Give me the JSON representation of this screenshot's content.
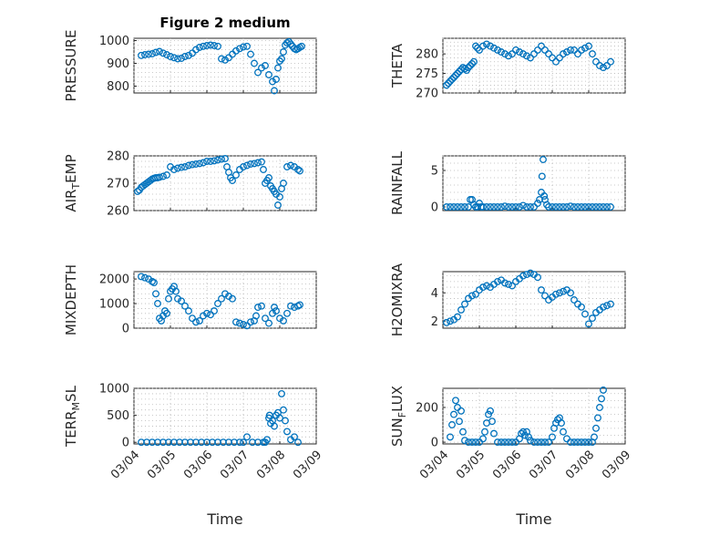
{
  "chart_data": [
    {
      "type": "scatter",
      "title": "Figure 2 medium",
      "ylabel": "PRESSURE",
      "ylim": [
        770,
        1010
      ],
      "yticks": [
        800,
        900,
        1000
      ],
      "ytick_labels": [
        "800",
        "900",
        "1000"
      ],
      "xlim": [
        0,
        5
      ],
      "xticks": [
        0,
        1,
        2,
        3,
        4,
        5
      ],
      "xtick_labels": [
        "03/04",
        "03/05",
        "03/06",
        "03/07",
        "03/08",
        "03/09"
      ],
      "grid": true,
      "marker_color": "#0072BD",
      "series": [
        {
          "x": [
            0.2,
            0.3,
            0.4,
            0.5,
            0.6,
            0.7,
            0.8,
            0.9,
            1.0,
            1.1,
            1.2,
            1.3,
            1.4,
            1.5,
            1.6,
            1.7,
            1.8,
            1.9,
            2.0,
            2.1,
            2.2,
            2.3,
            2.4,
            2.5,
            2.6,
            2.7,
            2.8,
            2.9,
            3.0,
            3.1,
            3.2,
            3.3,
            3.4,
            3.5,
            3.6,
            3.7,
            3.8,
            3.85,
            3.9,
            3.95,
            4.0,
            4.05,
            4.1,
            4.15,
            4.2,
            4.25,
            4.3,
            4.35,
            4.4,
            4.45,
            4.5,
            4.55,
            4.6
          ],
          "y": [
            935,
            938,
            940,
            942,
            948,
            952,
            945,
            938,
            930,
            925,
            920,
            922,
            930,
            935,
            945,
            960,
            970,
            975,
            978,
            980,
            978,
            975,
            920,
            915,
            925,
            940,
            955,
            965,
            972,
            975,
            940,
            900,
            860,
            880,
            890,
            850,
            820,
            780,
            830,
            880,
            910,
            920,
            950,
            980,
            990,
            995,
            985,
            975,
            965,
            960,
            965,
            970,
            975
          ]
        }
      ]
    },
    {
      "type": "scatter",
      "ylabel": "THETA",
      "ylim": [
        270,
        284
      ],
      "yticks": [
        270,
        275,
        280
      ],
      "ytick_labels": [
        "270",
        "275",
        "280"
      ],
      "xlim": [
        0,
        5
      ],
      "xticks": [
        0,
        1,
        2,
        3,
        4,
        5
      ],
      "grid": true,
      "marker_color": "#0072BD",
      "series": [
        {
          "x": [
            0.1,
            0.15,
            0.2,
            0.25,
            0.3,
            0.35,
            0.4,
            0.45,
            0.5,
            0.55,
            0.6,
            0.65,
            0.7,
            0.75,
            0.8,
            0.85,
            0.9,
            0.95,
            1.0,
            1.1,
            1.2,
            1.3,
            1.4,
            1.5,
            1.6,
            1.7,
            1.8,
            1.9,
            2.0,
            2.1,
            2.2,
            2.3,
            2.4,
            2.5,
            2.6,
            2.7,
            2.8,
            2.9,
            3.0,
            3.1,
            3.2,
            3.3,
            3.4,
            3.5,
            3.6,
            3.7,
            3.8,
            3.9,
            4.0,
            4.1,
            4.2,
            4.3,
            4.4,
            4.5,
            4.6
          ],
          "y": [
            272,
            272.5,
            273,
            273.5,
            274,
            274.5,
            275,
            275.5,
            276,
            276.5,
            276.2,
            275.8,
            276.5,
            277,
            277.5,
            278,
            282,
            281.5,
            281,
            282,
            282.5,
            282,
            281.5,
            281,
            280.5,
            280,
            279.5,
            280,
            281,
            280.5,
            280,
            279.5,
            279,
            280,
            281,
            282,
            281,
            280,
            279,
            278,
            279,
            280,
            280.5,
            281,
            281,
            280,
            281,
            281.5,
            282,
            280,
            278,
            277,
            276.5,
            277,
            278
          ]
        }
      ]
    },
    {
      "type": "scatter",
      "ylabel": "AIR_TEMP",
      "ylabel_main": "AIR",
      "ylabel_sub": "T",
      "ylabel_rest": "EMP",
      "ylim": [
        260,
        280
      ],
      "yticks": [
        260,
        270,
        280
      ],
      "ytick_labels": [
        "260",
        "270",
        "280"
      ],
      "xlim": [
        0,
        5
      ],
      "xticks": [
        0,
        1,
        2,
        3,
        4,
        5
      ],
      "grid": true,
      "marker_color": "#0072BD",
      "series": [
        {
          "x": [
            0.1,
            0.15,
            0.2,
            0.25,
            0.3,
            0.35,
            0.4,
            0.45,
            0.5,
            0.55,
            0.6,
            0.65,
            0.7,
            0.8,
            0.9,
            1.0,
            1.1,
            1.2,
            1.3,
            1.4,
            1.5,
            1.6,
            1.7,
            1.8,
            1.9,
            2.0,
            2.1,
            2.2,
            2.3,
            2.4,
            2.5,
            2.55,
            2.6,
            2.65,
            2.7,
            2.8,
            2.9,
            3.0,
            3.1,
            3.2,
            3.3,
            3.4,
            3.5,
            3.55,
            3.6,
            3.65,
            3.7,
            3.75,
            3.8,
            3.85,
            3.9,
            3.95,
            4.0,
            4.05,
            4.1,
            4.2,
            4.3,
            4.4,
            4.5,
            4.55
          ],
          "y": [
            267,
            267.5,
            268.5,
            269,
            269.5,
            270,
            270.5,
            271,
            271.5,
            271.8,
            272,
            272,
            272.2,
            272.5,
            273,
            276,
            275,
            275.5,
            275.8,
            276,
            276.5,
            276.8,
            277,
            277.2,
            277.5,
            278,
            278,
            278.2,
            278.5,
            278.8,
            279,
            276,
            274,
            272,
            271,
            273,
            275,
            276,
            276.5,
            277,
            277.2,
            277.5,
            277.8,
            275,
            270,
            271,
            272,
            269,
            268,
            267,
            266,
            262,
            265,
            268,
            270,
            276,
            276.5,
            276,
            275,
            274.5
          ]
        }
      ]
    },
    {
      "type": "scatter",
      "ylabel": "RAINFALL",
      "ylim": [
        -0.5,
        7
      ],
      "yticks": [
        0,
        5
      ],
      "ytick_labels": [
        "0",
        "5"
      ],
      "xlim": [
        0,
        5
      ],
      "xticks": [
        0,
        1,
        2,
        3,
        4,
        5
      ],
      "grid": true,
      "marker_color": "#0072BD",
      "series": [
        {
          "x": [
            0.1,
            0.2,
            0.3,
            0.4,
            0.5,
            0.6,
            0.7,
            0.75,
            0.8,
            0.85,
            0.9,
            0.95,
            1.0,
            1.05,
            1.1,
            1.2,
            1.3,
            1.4,
            1.5,
            1.6,
            1.7,
            1.8,
            1.9,
            2.0,
            2.1,
            2.2,
            2.3,
            2.4,
            2.5,
            2.6,
            2.65,
            2.7,
            2.72,
            2.75,
            2.78,
            2.8,
            2.85,
            2.9,
            3.0,
            3.1,
            3.2,
            3.3,
            3.4,
            3.5,
            3.6,
            3.7,
            3.8,
            3.9,
            4.0,
            4.1,
            4.2,
            4.3,
            4.4,
            4.5,
            4.6
          ],
          "y": [
            0,
            0,
            0,
            0,
            0,
            0,
            0,
            1,
            1,
            0.3,
            0,
            0,
            0.5,
            0,
            0,
            0,
            0,
            0,
            0,
            0,
            0.1,
            0,
            0,
            0,
            0,
            0.2,
            0,
            0,
            0,
            0.5,
            1,
            2,
            4.2,
            6.5,
            1.5,
            1,
            0.3,
            0,
            0,
            0,
            0,
            0,
            0,
            0.1,
            0,
            0,
            0,
            0,
            0,
            0,
            0,
            0,
            0,
            0,
            0
          ]
        }
      ]
    },
    {
      "type": "scatter",
      "ylabel": "MIXDEPTH",
      "ylim": [
        0,
        2300
      ],
      "yticks": [
        0,
        1000,
        2000
      ],
      "ytick_labels": [
        "0",
        "1000",
        "2000"
      ],
      "xlim": [
        0,
        5
      ],
      "xticks": [
        0,
        1,
        2,
        3,
        4,
        5
      ],
      "grid": true,
      "marker_color": "#0072BD",
      "series": [
        {
          "x": [
            0.2,
            0.3,
            0.4,
            0.5,
            0.55,
            0.6,
            0.65,
            0.7,
            0.75,
            0.8,
            0.85,
            0.9,
            0.95,
            1.0,
            1.05,
            1.1,
            1.15,
            1.2,
            1.3,
            1.4,
            1.5,
            1.6,
            1.7,
            1.8,
            1.9,
            2.0,
            2.1,
            2.2,
            2.3,
            2.4,
            2.5,
            2.6,
            2.7,
            2.8,
            2.9,
            3.0,
            3.1,
            3.2,
            3.3,
            3.35,
            3.4,
            3.5,
            3.6,
            3.7,
            3.8,
            3.85,
            3.9,
            4.0,
            4.1,
            4.2,
            4.3,
            4.4,
            4.5,
            4.55
          ],
          "y": [
            2100,
            2050,
            2000,
            1900,
            1850,
            1400,
            1000,
            400,
            300,
            500,
            700,
            600,
            1200,
            1500,
            1600,
            1700,
            1500,
            1200,
            1100,
            900,
            700,
            400,
            250,
            300,
            500,
            600,
            550,
            700,
            1000,
            1200,
            1400,
            1300,
            1200,
            250,
            200,
            150,
            100,
            250,
            300,
            500,
            850,
            900,
            400,
            200,
            600,
            850,
            700,
            400,
            300,
            600,
            900,
            850,
            900,
            950
          ]
        }
      ]
    },
    {
      "type": "scatter",
      "ylabel": "H2OMIXRA",
      "ylim": [
        1.5,
        5.5
      ],
      "yticks": [
        2,
        4
      ],
      "ytick_labels": [
        "2",
        "4"
      ],
      "xlim": [
        0,
        5
      ],
      "xticks": [
        0,
        1,
        2,
        3,
        4,
        5
      ],
      "grid": true,
      "marker_color": "#0072BD",
      "series": [
        {
          "x": [
            0.1,
            0.2,
            0.3,
            0.4,
            0.5,
            0.6,
            0.7,
            0.8,
            0.9,
            1.0,
            1.1,
            1.2,
            1.3,
            1.4,
            1.5,
            1.6,
            1.7,
            1.8,
            1.9,
            2.0,
            2.1,
            2.2,
            2.3,
            2.4,
            2.5,
            2.6,
            2.7,
            2.8,
            2.9,
            3.0,
            3.1,
            3.2,
            3.3,
            3.4,
            3.5,
            3.6,
            3.7,
            3.8,
            3.9,
            4.0,
            4.1,
            4.2,
            4.3,
            4.4,
            4.5,
            4.6
          ],
          "y": [
            1.9,
            2.0,
            2.1,
            2.3,
            2.8,
            3.2,
            3.6,
            3.8,
            3.9,
            4.2,
            4.4,
            4.5,
            4.4,
            4.6,
            4.8,
            4.9,
            4.7,
            4.6,
            4.5,
            4.8,
            5.0,
            5.2,
            5.3,
            5.4,
            5.3,
            5.1,
            4.2,
            3.8,
            3.5,
            3.7,
            3.9,
            4.0,
            4.1,
            4.2,
            4.0,
            3.5,
            3.2,
            3.0,
            2.5,
            1.8,
            2.2,
            2.6,
            2.8,
            3.0,
            3.1,
            3.2
          ]
        }
      ]
    },
    {
      "type": "scatter",
      "ylabel": "TERR_MSL",
      "ylabel_main": "TERR",
      "ylabel_sub": "M",
      "ylabel_rest": "SL",
      "ylim": [
        -30,
        1000
      ],
      "yticks": [
        0,
        500,
        1000
      ],
      "ytick_labels": [
        "0",
        "500",
        "1000"
      ],
      "xlim": [
        0,
        5
      ],
      "xticks": [
        0,
        1,
        2,
        3,
        4,
        5
      ],
      "xtick_labels": [
        "03/04",
        "03/05",
        "03/06",
        "03/07",
        "03/08",
        "03/09"
      ],
      "xlabel": "Time",
      "grid": true,
      "marker_color": "#0072BD",
      "series": [
        {
          "x": [
            0.2,
            0.35,
            0.5,
            0.65,
            0.8,
            0.95,
            1.1,
            1.25,
            1.4,
            1.55,
            1.7,
            1.85,
            2.0,
            2.15,
            2.3,
            2.45,
            2.6,
            2.75,
            2.9,
            3.0,
            3.1,
            3.25,
            3.4,
            3.55,
            3.6,
            3.65,
            3.7,
            3.72,
            3.75,
            3.8,
            3.85,
            3.9,
            3.95,
            4.0,
            4.05,
            4.1,
            4.15,
            4.2,
            4.3,
            4.4,
            4.5
          ],
          "y": [
            0,
            0,
            0,
            0,
            0,
            0,
            0,
            0,
            0,
            0,
            0,
            0,
            0,
            0,
            0,
            0,
            0,
            0,
            0,
            0,
            100,
            0,
            0,
            0,
            0,
            50,
            450,
            500,
            350,
            400,
            300,
            500,
            550,
            450,
            900,
            600,
            400,
            200,
            50,
            100,
            0
          ]
        }
      ]
    },
    {
      "type": "scatter",
      "ylabel": "SUN_FLUX",
      "ylabel_main": "SUN",
      "ylabel_sub": "F",
      "ylabel_rest": "LUX",
      "ylim": [
        -10,
        310
      ],
      "yticks": [
        0,
        200
      ],
      "ytick_labels": [
        "0",
        "200"
      ],
      "xlim": [
        0,
        5
      ],
      "xticks": [
        0,
        1,
        2,
        3,
        4,
        5
      ],
      "xtick_labels": [
        "03/04",
        "03/05",
        "03/06",
        "03/07",
        "03/08",
        "03/09"
      ],
      "xlabel": "Time",
      "grid": true,
      "marker_color": "#0072BD",
      "series": [
        {
          "x": [
            0.2,
            0.25,
            0.3,
            0.35,
            0.4,
            0.45,
            0.5,
            0.55,
            0.6,
            0.7,
            0.8,
            0.9,
            1.0,
            1.1,
            1.15,
            1.2,
            1.25,
            1.3,
            1.35,
            1.4,
            1.5,
            1.6,
            1.7,
            1.8,
            1.9,
            2.0,
            2.1,
            2.15,
            2.2,
            2.25,
            2.3,
            2.35,
            2.4,
            2.5,
            2.6,
            2.7,
            2.8,
            2.9,
            3.0,
            3.05,
            3.1,
            3.15,
            3.2,
            3.25,
            3.3,
            3.4,
            3.5,
            3.6,
            3.7,
            3.8,
            3.9,
            4.0,
            4.1,
            4.15,
            4.2,
            4.25,
            4.3,
            4.35,
            4.4
          ],
          "y": [
            30,
            100,
            160,
            240,
            200,
            120,
            180,
            60,
            10,
            0,
            0,
            0,
            0,
            20,
            60,
            110,
            160,
            180,
            120,
            50,
            0,
            0,
            0,
            0,
            0,
            0,
            20,
            50,
            60,
            40,
            60,
            30,
            10,
            0,
            0,
            0,
            0,
            0,
            30,
            80,
            110,
            130,
            140,
            110,
            60,
            20,
            0,
            0,
            0,
            0,
            0,
            0,
            0,
            30,
            80,
            140,
            200,
            250,
            300
          ]
        }
      ]
    }
  ]
}
